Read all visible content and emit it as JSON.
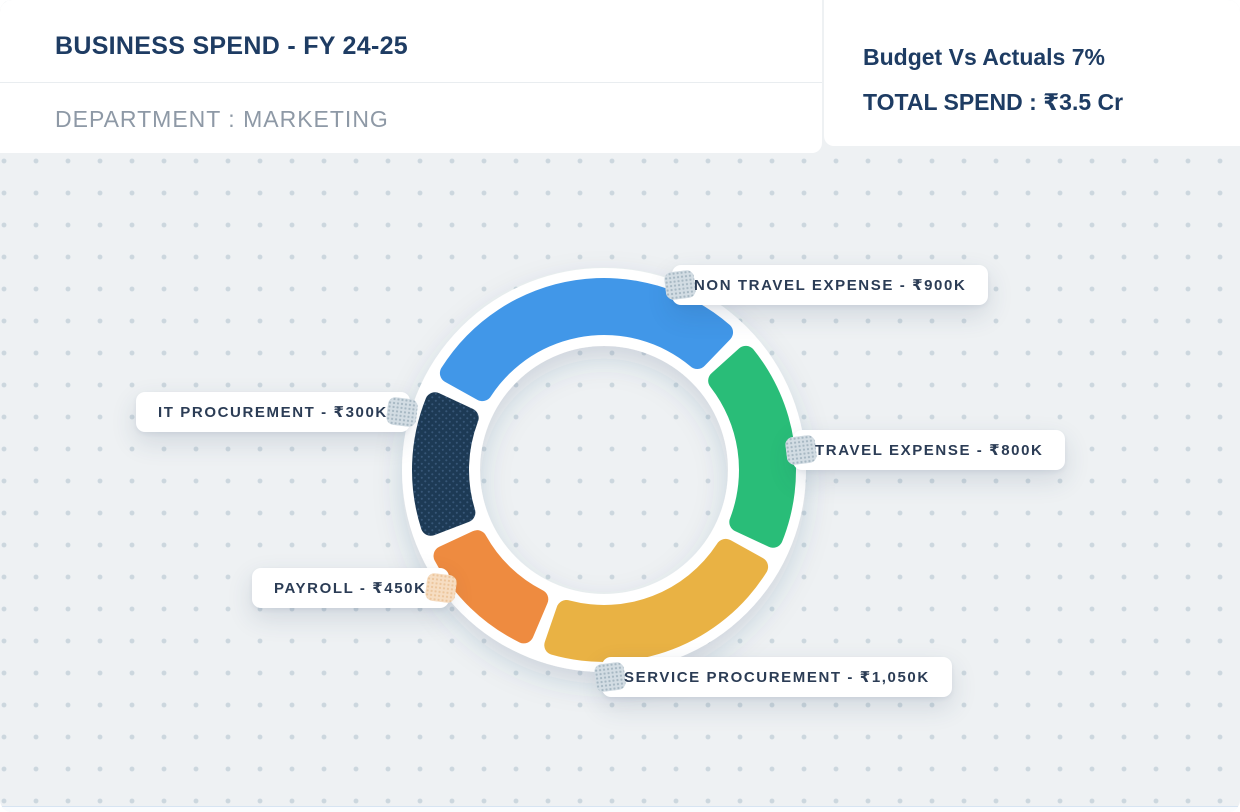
{
  "header": {
    "title": "BUSINESS SPEND - FY 24-25",
    "department": "DEPARTMENT : MARKETING"
  },
  "summary": {
    "budget_vs_actuals": "Budget Vs Actuals 7%",
    "total_spend": "TOTAL SPEND : ₹3.5 Cr"
  },
  "chart_data": {
    "type": "donut",
    "title": "BUSINESS SPEND - FY 24-25",
    "currency": "INR",
    "unit": "thousands (K)",
    "total": 3500,
    "total_display": "₹3.5 Cr",
    "legend_position": "around-chart",
    "segments": [
      {
        "name": "Non Travel Expense",
        "label": "NON TRAVEL EXPENSE - ₹900K",
        "value": 900,
        "value_display": "₹900K",
        "color": "#4197e8",
        "start_deg": 297,
        "end_deg": 406
      },
      {
        "name": "Travel Expense",
        "label": "TRAVEL EXPENSE - ₹800K",
        "value": 800,
        "value_display": "₹800K",
        "color": "#29bd78",
        "start_deg": 46,
        "end_deg": 117
      },
      {
        "name": "Service Procurement",
        "label": "SERVICE PROCUREMENT - ₹1,050K",
        "value": 1050,
        "value_display": "₹1,050K",
        "color": "#e9b244",
        "start_deg": 117,
        "end_deg": 201
      },
      {
        "name": "Payroll",
        "label": "PAYROLL - ₹450K",
        "value": 450,
        "value_display": "₹450K",
        "color": "#ee8b40",
        "start_deg": 201,
        "end_deg": 247
      },
      {
        "name": "IT Procurement",
        "label": "IT PROCUREMENT - ₹300K",
        "value": 300,
        "value_display": "₹300K",
        "color": "#1d3a55",
        "start_deg": 247,
        "end_deg": 297,
        "texture": "dots",
        "texture_dot_color": "#375677"
      }
    ],
    "geometry": {
      "center": [
        604,
        470
      ],
      "outer_radius": 192,
      "inner_radius": 135,
      "ring_outer_radius": 202,
      "ring_inner_radius": 124,
      "pad_deg": 2,
      "corner_radius": 10,
      "gap_color": "#ffffff"
    }
  },
  "colors": {
    "background": "#eef1f3",
    "background_dot": "#ccd7de",
    "card": "#ffffff",
    "heading": "#1e3c63",
    "muted": "#8e99a6",
    "pill_text": "#2b3c55"
  }
}
